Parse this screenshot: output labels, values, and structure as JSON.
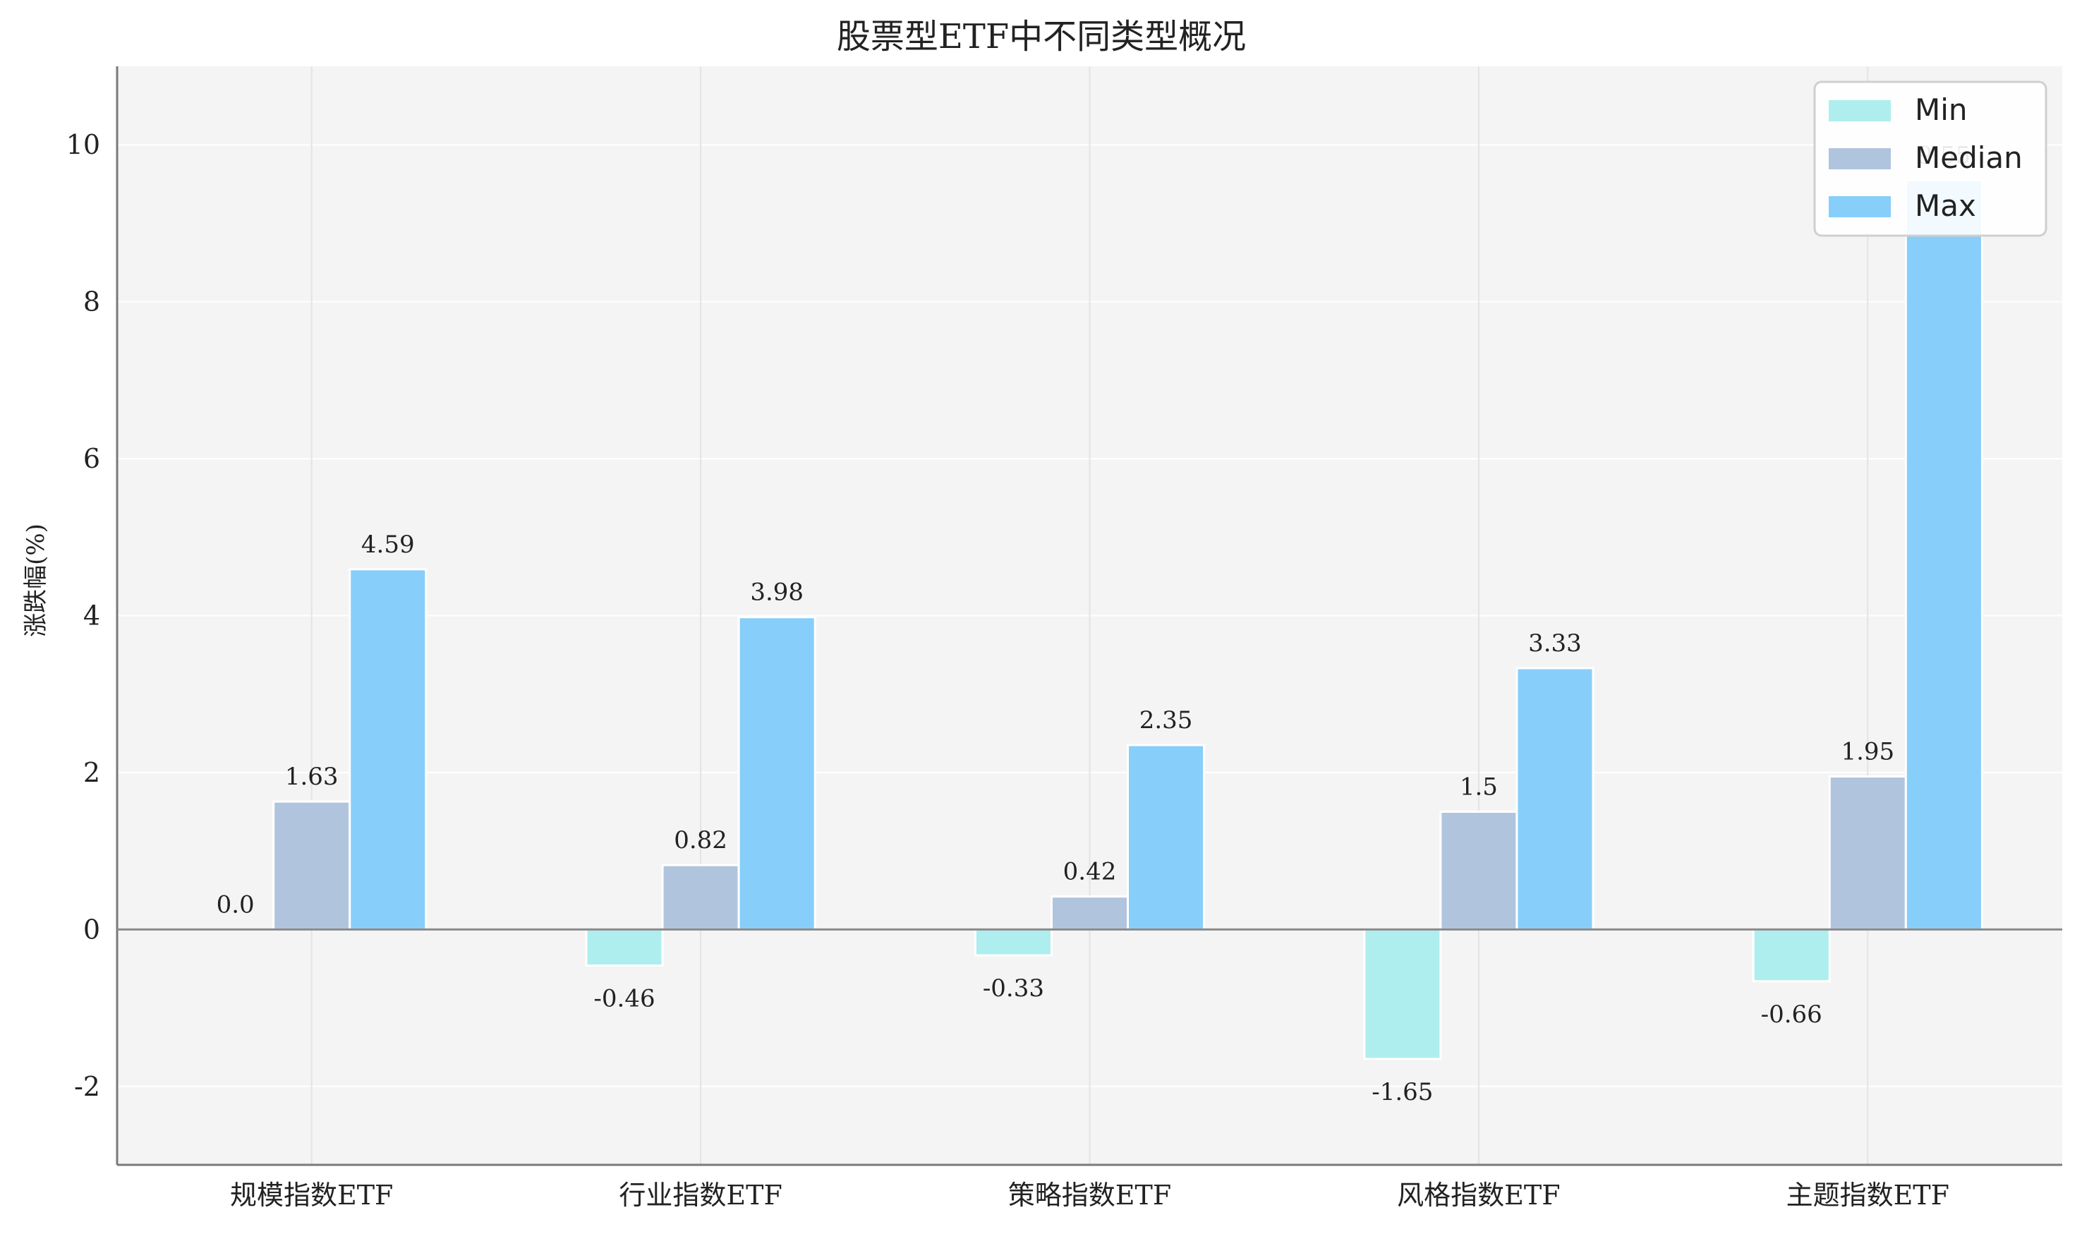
{
  "chart_data": {
    "type": "bar",
    "title": "股票型ETF中不同类型概况",
    "xlabel": "",
    "ylabel": "涨跌幅(%)",
    "ylim": [
      -3,
      11
    ],
    "yticks": [
      -2,
      0,
      2,
      4,
      6,
      8,
      10
    ],
    "grid": true,
    "legend_position": "top-right",
    "categories": [
      "规模指数ETF",
      "行业指数ETF",
      "策略指数ETF",
      "风格指数ETF",
      "主题指数ETF"
    ],
    "series": [
      {
        "name": "Min",
        "color": "#aeeeee",
        "values": [
          0.0,
          -0.46,
          -0.33,
          -1.65,
          -0.66
        ],
        "labels": [
          "0.0",
          "-0.46",
          "-0.33",
          "-1.65",
          "-0.66"
        ]
      },
      {
        "name": "Median",
        "color": "#b0c4de",
        "values": [
          1.63,
          0.82,
          0.42,
          1.5,
          1.95
        ],
        "labels": [
          "1.63",
          "0.82",
          "0.42",
          "1.5",
          "1.95"
        ]
      },
      {
        "name": "Max",
        "color": "#87cefa",
        "values": [
          4.59,
          3.98,
          2.35,
          3.33,
          9.55
        ],
        "labels": [
          "4.59",
          "3.98",
          "2.35",
          "3.33",
          "9.55"
        ]
      }
    ]
  }
}
